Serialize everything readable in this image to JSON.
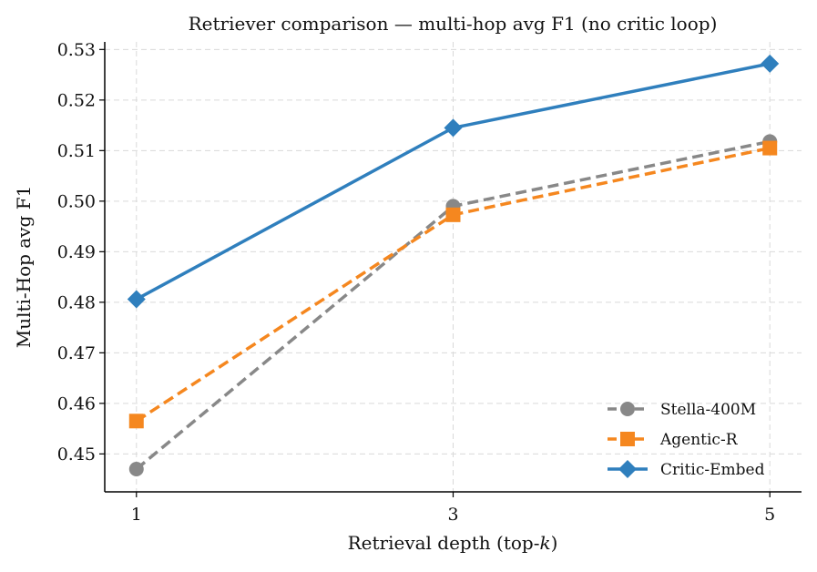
{
  "chart_data": {
    "type": "line",
    "title": "Retriever comparison — multi-hop avg F1 (no critic loop)",
    "xlabel": "Retrieval depth (top-k)",
    "ylabel": "Multi-Hop avg F1",
    "x": [
      1,
      3,
      5
    ],
    "x_tick_labels": [
      "1",
      "3",
      "5"
    ],
    "xlim": [
      0.8,
      5.2
    ],
    "ylim": [
      0.4425,
      0.5315
    ],
    "y_ticks": [
      0.45,
      0.46,
      0.47,
      0.48,
      0.49,
      0.5,
      0.51,
      0.52,
      0.53
    ],
    "y_tick_labels": [
      "0.45",
      "0.46",
      "0.47",
      "0.48",
      "0.49",
      "0.50",
      "0.51",
      "0.52",
      "0.53"
    ],
    "grid": true,
    "legend_position": "lower-right",
    "series": [
      {
        "name": "Stella-400M",
        "values": [
          0.447,
          0.499,
          0.5118
        ],
        "color": "#888888",
        "linestyle": "dashed",
        "marker": "circle"
      },
      {
        "name": "Agentic-R",
        "values": [
          0.4565,
          0.4973,
          0.5105
        ],
        "color": "#f5871f",
        "linestyle": "dashed",
        "marker": "square"
      },
      {
        "name": "Critic-Embed",
        "values": [
          0.4806,
          0.5145,
          0.5272
        ],
        "color": "#2f7fbd",
        "linestyle": "solid",
        "marker": "diamond"
      }
    ]
  }
}
